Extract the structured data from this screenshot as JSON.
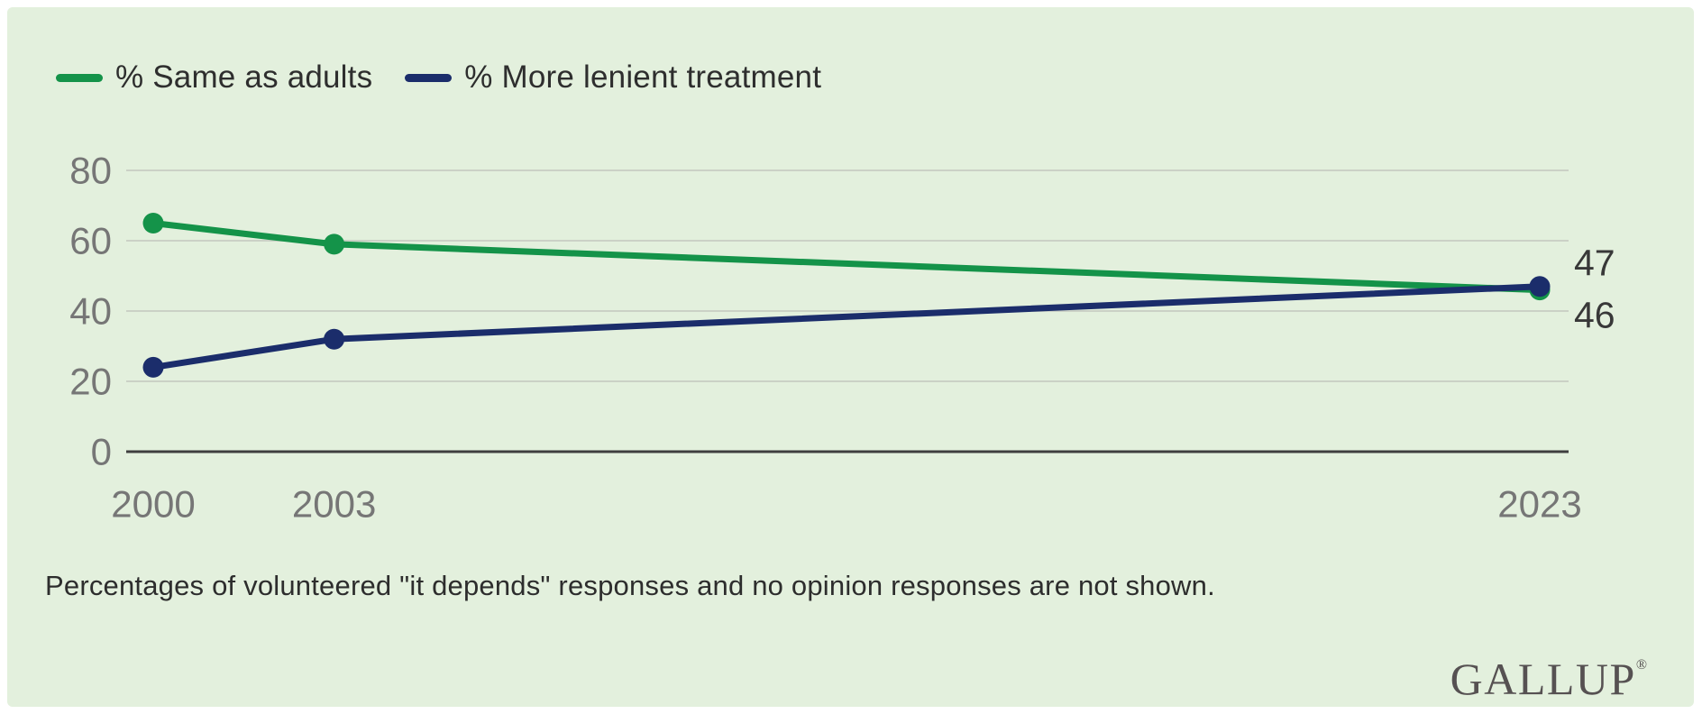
{
  "panel": {
    "background": "#e3f0dd"
  },
  "legend": {
    "items": [
      {
        "label": "% Same as adults",
        "color": "#149349"
      },
      {
        "label": "% More lenient treatment",
        "color": "#1b2d6b"
      }
    ]
  },
  "chart_data": {
    "type": "line",
    "x": [
      2000,
      2003,
      2023
    ],
    "x_tick_labels": [
      "2000",
      "2003",
      "2023"
    ],
    "series": [
      {
        "name": "% Same as adults",
        "color": "#149349",
        "values": [
          65,
          59,
          46
        ]
      },
      {
        "name": "% More lenient treatment",
        "color": "#1b2d6b",
        "values": [
          24,
          32,
          47
        ]
      }
    ],
    "end_labels": [
      {
        "text": "47",
        "series": "% More lenient treatment"
      },
      {
        "text": "46",
        "series": "% Same as adults"
      }
    ],
    "ylim": [
      0,
      80
    ],
    "yticks": [
      0,
      20,
      40,
      60,
      80
    ],
    "grid": true,
    "legend_position": "top-left",
    "colors": {
      "gridline": "#cbd1c6",
      "axis": "#3f3f3f",
      "tick_label": "#767676",
      "end_label": "#383838"
    }
  },
  "footnote": "Percentages of volunteered \"it depends\" responses and no opinion responses are not shown.",
  "logo": {
    "text": "GALLUP",
    "registered": "®"
  }
}
